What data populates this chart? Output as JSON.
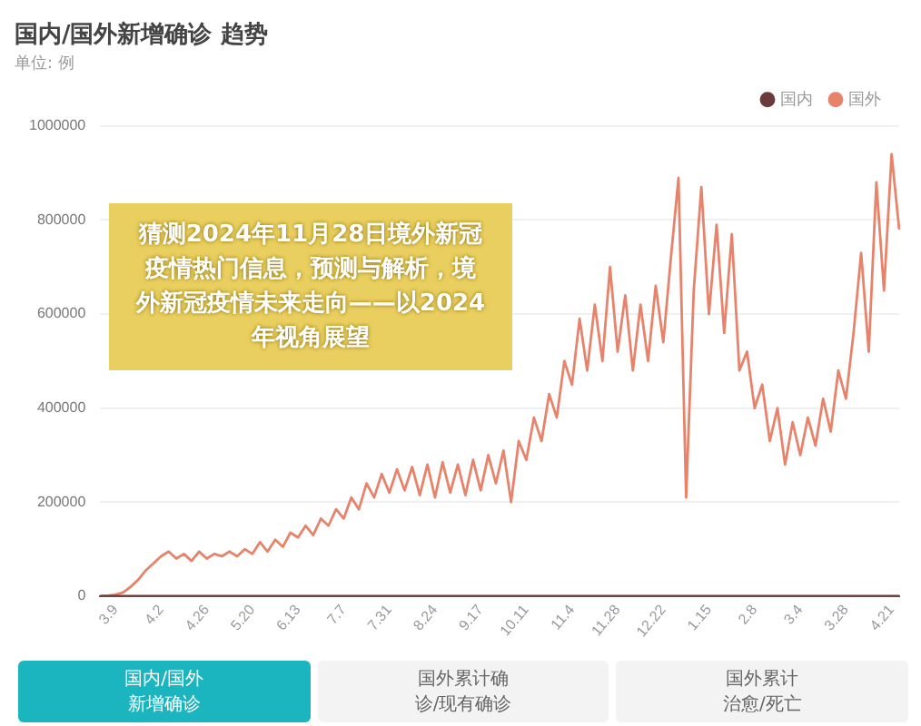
{
  "chart_data": {
    "type": "line",
    "title": "国内/国外新增确诊 趋势",
    "subtitle": "单位: 例",
    "categories": [
      null,
      null,
      "3.9",
      null,
      null,
      null,
      null,
      null,
      "4.2",
      null,
      null,
      null,
      null,
      null,
      "4.26",
      null,
      null,
      null,
      null,
      null,
      "5.20",
      null,
      null,
      null,
      null,
      null,
      "6.13",
      null,
      null,
      null,
      null,
      null,
      "7.7",
      null,
      null,
      null,
      null,
      null,
      "7.31",
      null,
      null,
      null,
      null,
      null,
      "8.24",
      null,
      null,
      null,
      null,
      null,
      "9.17",
      null,
      null,
      null,
      null,
      null,
      "10.11",
      null,
      null,
      null,
      null,
      null,
      "11.4",
      null,
      null,
      null,
      null,
      null,
      "11.28",
      null,
      null,
      null,
      null,
      null,
      "12.22",
      null,
      null,
      null,
      null,
      null,
      "1.15",
      null,
      null,
      null,
      null,
      null,
      "2.8",
      null,
      null,
      null,
      null,
      null,
      "3.4",
      null,
      null,
      null,
      null,
      null,
      "3.28",
      null,
      null,
      null,
      null,
      null,
      "4.21",
      null
    ],
    "series": [
      {
        "name": "国内",
        "color": "#6b3a3a",
        "values": [
          0,
          0,
          0,
          0,
          0,
          0,
          0,
          0,
          0,
          0,
          0,
          0,
          0,
          0,
          0,
          0,
          0,
          0,
          0,
          0,
          0,
          0,
          0,
          0,
          0,
          0,
          0,
          0,
          0,
          0,
          0,
          0,
          0,
          0,
          0,
          0,
          0,
          0,
          0,
          0,
          0,
          0,
          0,
          0,
          0,
          0,
          0,
          0,
          0,
          0,
          0,
          0,
          0,
          0,
          0,
          0,
          0,
          0,
          0,
          0,
          0,
          0,
          0,
          0,
          0,
          0,
          0,
          0,
          0,
          0,
          0,
          0,
          0,
          0,
          0,
          0,
          0,
          0,
          0,
          0,
          0,
          0,
          0,
          0,
          0,
          0,
          0,
          0,
          0,
          0,
          0,
          0,
          0,
          0,
          0,
          0,
          0,
          0,
          0,
          0,
          0,
          0,
          0,
          0,
          0,
          0
        ]
      },
      {
        "name": "国外",
        "color": "#e8836b",
        "values": [
          0,
          1000,
          3000,
          8000,
          20000,
          35000,
          55000,
          70000,
          85000,
          95000,
          80000,
          90000,
          75000,
          95000,
          80000,
          90000,
          85000,
          95000,
          85000,
          100000,
          90000,
          115000,
          95000,
          120000,
          105000,
          135000,
          125000,
          150000,
          130000,
          165000,
          150000,
          185000,
          165000,
          210000,
          185000,
          240000,
          210000,
          260000,
          220000,
          270000,
          225000,
          275000,
          215000,
          280000,
          210000,
          285000,
          220000,
          280000,
          215000,
          290000,
          225000,
          300000,
          240000,
          310000,
          200000,
          330000,
          290000,
          380000,
          330000,
          430000,
          380000,
          500000,
          450000,
          590000,
          480000,
          620000,
          500000,
          700000,
          520000,
          640000,
          480000,
          620000,
          500000,
          660000,
          540000,
          720000,
          890000,
          210000,
          650000,
          870000,
          600000,
          790000,
          560000,
          770000,
          480000,
          520000,
          400000,
          450000,
          330000,
          400000,
          280000,
          370000,
          300000,
          380000,
          320000,
          420000,
          350000,
          480000,
          420000,
          560000,
          730000,
          520000,
          880000,
          650000,
          940000,
          780000
        ]
      }
    ],
    "ylim": [
      0,
      1000000
    ],
    "yticks": [
      0,
      200000,
      400000,
      600000,
      800000,
      1000000
    ],
    "grid": "y",
    "legend": "top right",
    "annotations": [
      "猜测2024年11月28日境外新冠疫情热门信息，预测与解析，境外新冠疫情未来走向——以2024年视角展望",
      "国内/国外新增确诊",
      "国外累计确诊/现有确诊",
      "国外累计治愈/死亡"
    ]
  }
}
